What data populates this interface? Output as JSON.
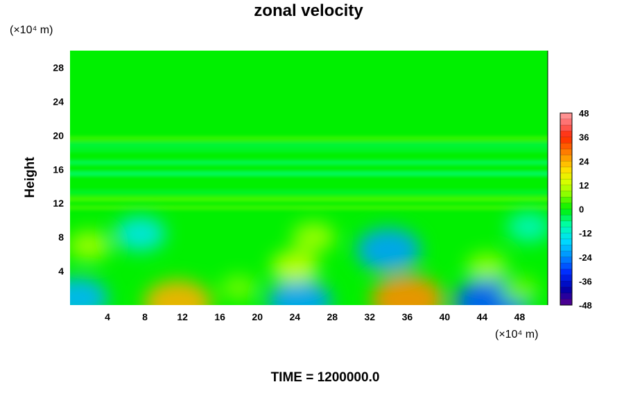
{
  "chart_data": {
    "type": "heatmap",
    "title": "zonal velocity",
    "ylabel": "Height",
    "y_unit": "(×10⁴ m)",
    "x_unit": "(×10⁴ m)",
    "footer": "TIME = 1200000.0",
    "xlim": [
      0,
      51
    ],
    "ylim": [
      0,
      30
    ],
    "x_ticks": [
      4,
      8,
      12,
      16,
      20,
      24,
      28,
      32,
      36,
      40,
      44,
      48
    ],
    "y_ticks": [
      4,
      8,
      12,
      16,
      20,
      24,
      28
    ],
    "colorbar": {
      "min": -48,
      "max": 48,
      "step": 3,
      "tick_labels": [
        48,
        36,
        24,
        12,
        0,
        -12,
        -24,
        -36,
        -48
      ]
    },
    "features": [
      {
        "x": 36,
        "y": 0.6,
        "value": 27
      },
      {
        "x": 11.5,
        "y": 0.2,
        "value": 24
      },
      {
        "x": 34,
        "y": 6.5,
        "value": -22
      },
      {
        "x": 45,
        "y": 0.3,
        "value": -28
      },
      {
        "x": 24.5,
        "y": 0.4,
        "value": -22
      },
      {
        "x": 0.8,
        "y": 0.8,
        "value": -20
      },
      {
        "x": 7.5,
        "y": 8.4,
        "value": -14
      },
      {
        "x": 26,
        "y": 8,
        "value": 9
      },
      {
        "x": 24,
        "y": 4.5,
        "value": 12
      },
      {
        "x": 44.5,
        "y": 4.5,
        "value": 8
      },
      {
        "x": 2,
        "y": 7,
        "value": 9
      },
      {
        "x": 49,
        "y": 9.2,
        "value": -10
      },
      {
        "x": 18,
        "y": 2,
        "value": 6
      },
      {
        "x": 48,
        "y": 1.8,
        "value": 6
      }
    ],
    "bands": [
      {
        "y": 18.9,
        "value": -3
      },
      {
        "y": 19.6,
        "value": 3
      },
      {
        "y": 18.3,
        "value": -2
      },
      {
        "y": 15.5,
        "value": -5
      },
      {
        "y": 16.8,
        "value": -4
      },
      {
        "y": 12.5,
        "value": 4
      },
      {
        "y": 11.5,
        "value": 3
      },
      {
        "y": 13.3,
        "value": -2
      }
    ]
  }
}
